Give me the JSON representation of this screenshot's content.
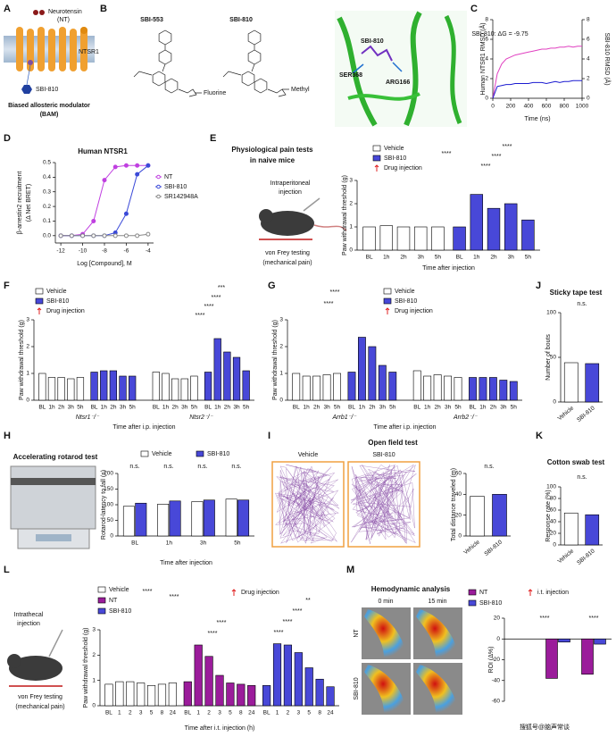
{
  "figure": {
    "panels": [
      "A",
      "B",
      "C",
      "D",
      "E",
      "F",
      "G",
      "J",
      "H",
      "I",
      "K",
      "L",
      "M"
    ],
    "a": {
      "ligand": "Neurotensin",
      "ligand_abbr": "(NT)",
      "receptor": "NTSR1",
      "modulator": "SBI-810",
      "caption": "Biased allosteric modulator",
      "caption_abbr": "(BAM)"
    },
    "b": {
      "compound_1": "SBI-553",
      "compound_2": "SBI-810",
      "group_1": "Fluorine",
      "group_2": "Methyl",
      "ligand": "SBI-810",
      "residue_1": "SER368",
      "residue_2": "ARG166"
    },
    "e": {
      "title": "Physiological pain tests",
      "title_2": "in naive mice",
      "route": "Intraperitoneal",
      "route_2": "injection",
      "test": "von Frey testing",
      "test_2": "(mechanical pain)"
    },
    "i": {
      "group_1": "Vehicle",
      "group_2": "SBI-810"
    },
    "l": {
      "route": "Intrathecal",
      "route_2": "injection",
      "test": "von Frey testing",
      "test_2": "(mechanical pain)"
    },
    "m": {
      "title": "Hemodynamic analysis",
      "time_1": "0 min",
      "time_2": "15 min",
      "row_1": "NT",
      "row_2": "SBI-810"
    },
    "watermark": "搜狐号@脑声常谈"
  },
  "chart_data": [
    {
      "type": "line",
      "x": [
        0,
        50,
        100,
        150,
        200,
        250,
        300,
        350,
        400,
        450,
        500,
        550,
        600,
        650,
        700,
        750,
        800,
        850,
        900,
        950,
        1000
      ],
      "xlim": [
        0,
        1000
      ],
      "xticks": [
        0,
        200,
        400,
        600,
        800,
        1000
      ],
      "ylim": [
        0,
        8
      ],
      "yticks": [
        0,
        2,
        4,
        6,
        8
      ],
      "y2lim": [
        0,
        8
      ],
      "y2ticks": [
        0,
        2,
        4,
        6,
        8
      ],
      "ylabel": "Human NTSR1 RMSD (Å)",
      "y2label": "SBI-810 RMSD (Å)",
      "xlabel": "Time (ns)",
      "annotations": [
        "SBI-810: ΔG = -9.75"
      ],
      "series": [
        {
          "color": "#e040c0",
          "values": [
            0,
            2.5,
            3.5,
            4,
            4.2,
            4.4,
            4.5,
            4.6,
            4.7,
            4.8,
            4.9,
            5,
            5,
            5.1,
            5.1,
            5.2,
            5.2,
            5.3,
            5.2,
            5.3,
            5.3
          ]
        },
        {
          "color": "#1a1ad0",
          "axis": "y2",
          "values": [
            0,
            1.2,
            1.3,
            1.4,
            1.4,
            1.5,
            1.5,
            1.5,
            1.5,
            1.6,
            1.6,
            1.6,
            1.5,
            1.6,
            1.7,
            1.6,
            1.7,
            1.7,
            1.8,
            1.8,
            1.8
          ]
        }
      ]
    },
    {
      "type": "line",
      "title": "Human NTSR1",
      "markers": true,
      "x": [
        -12,
        -11,
        -10,
        -9,
        -8,
        -7,
        -6,
        -5,
        -4
      ],
      "xlim": [
        -12.5,
        -3.5
      ],
      "xticks": [
        -12,
        -10,
        -8,
        -6,
        -4
      ],
      "ylim": [
        -0.05,
        0.5
      ],
      "yticks": [
        {
          "value": 0,
          "label": "0.0"
        },
        0.1,
        0.2,
        0.3,
        0.4,
        0.5
      ],
      "ylabel": [
        "β-arrestin2 recruitment",
        "(Δ Net BRET)"
      ],
      "xlabel": "Log [Compound], M",
      "series": [
        {
          "name": "NT",
          "color": "#c040e0",
          "values": [
            0,
            0,
            0.01,
            0.1,
            0.38,
            0.47,
            0.48,
            0.48,
            0.48
          ]
        },
        {
          "name": "SBI-810",
          "color": "#3b4ad8",
          "values": [
            0,
            0,
            0,
            0,
            0,
            0.02,
            0.15,
            0.42,
            0.48
          ]
        },
        {
          "name": "SR142948A",
          "color": "#888888",
          "values": [
            0,
            0,
            0,
            0,
            0,
            0,
            0,
            0,
            0.01
          ]
        }
      ]
    },
    {
      "type": "bar",
      "categories": [
        "BL",
        "1h",
        "2h",
        "3h",
        "5h"
      ],
      "series": [
        {
          "name": "Vehicle",
          "color": "#ffffff"
        },
        {
          "name": "SBI-810",
          "color": "#4848d8"
        }
      ],
      "groups": [
        {
          "values": [
            [
              1.0,
              1.05,
              1.0,
              1.0,
              1.0
            ],
            [
              1.0,
              2.4,
              1.8,
              2.0,
              1.3
            ]
          ]
        }
      ],
      "ylim": [
        0,
        3
      ],
      "yticks": [
        0,
        1,
        2,
        3
      ],
      "ylabel": "Paw withdrawal threshold (g)",
      "xlabel": "Time after injection",
      "injection_note": "Drug injection",
      "annotations": [
        "****",
        "****",
        "****",
        "****"
      ]
    },
    {
      "type": "bar",
      "categories": [
        "BL",
        "1h",
        "2h",
        "3h",
        "5h"
      ],
      "series": [
        {
          "name": "Vehicle",
          "color": "#ffffff"
        },
        {
          "name": "SBI-810",
          "color": "#4848d8"
        }
      ],
      "groups": [
        {
          "label": "Ntsr1⁻/⁻",
          "values": [
            [
              1.0,
              0.85,
              0.85,
              0.8,
              0.85
            ],
            [
              1.05,
              1.1,
              1.1,
              0.9,
              0.9
            ]
          ]
        },
        {
          "label": "Ntsr2⁻/⁻",
          "values": [
            [
              1.05,
              1.0,
              0.8,
              0.8,
              0.9
            ],
            [
              1.05,
              2.3,
              1.8,
              1.6,
              1.1
            ]
          ]
        }
      ],
      "ylim": [
        0,
        3
      ],
      "yticks": [
        0,
        1,
        2,
        3
      ],
      "ylabel": "Paw withdrawal threshold (g)",
      "xlabel": "Time after i.p. injection",
      "injection_note": "Drug injection",
      "annotations": [
        "***",
        "****",
        "****",
        "****"
      ]
    },
    {
      "type": "bar",
      "categories": [
        "BL",
        "1h",
        "2h",
        "3h",
        "5h"
      ],
      "series": [
        {
          "name": "Vehicle",
          "color": "#ffffff"
        },
        {
          "name": "SBI-810",
          "color": "#4848d8"
        }
      ],
      "groups": [
        {
          "label": "Arrb1⁻/⁻",
          "values": [
            [
              1.0,
              0.9,
              0.9,
              0.95,
              1.0
            ],
            [
              1.05,
              2.35,
              2.0,
              1.3,
              1.05
            ]
          ]
        },
        {
          "label": "Arrb2⁻/⁻",
          "values": [
            [
              1.1,
              0.9,
              0.95,
              0.9,
              0.85
            ],
            [
              0.85,
              0.85,
              0.85,
              0.75,
              0.7
            ]
          ]
        }
      ],
      "ylim": [
        0,
        3
      ],
      "yticks": [
        0,
        1,
        2,
        3
      ],
      "ylabel": "Paw withdrawal threshold (g)",
      "xlabel": "Time after i.p. injection",
      "injection_note": "Drug injection",
      "annotations": [
        "****",
        "****"
      ]
    },
    {
      "type": "bar",
      "title": "Sticky tape test",
      "categories": [
        "Vehicle",
        "SBI-810"
      ],
      "values": [
        44,
        43
      ],
      "colors": [
        "#ffffff",
        "#4848d8"
      ],
      "ylim": [
        0,
        100
      ],
      "yticks": [
        0,
        50,
        100
      ],
      "ylabel": "Number of bouts",
      "annotations": [
        "n.s."
      ]
    },
    {
      "type": "grouped_bar",
      "title": "Accelerating rotarod test",
      "categories": [
        "BL",
        "1h",
        "3h",
        "5h"
      ],
      "series": [
        {
          "name": "Vehicle",
          "color": "#ffffff",
          "values": [
            95,
            102,
            110,
            118
          ]
        },
        {
          "name": "SBI-810",
          "color": "#4848d8",
          "values": [
            105,
            112,
            115,
            115
          ]
        }
      ],
      "ylim": [
        0,
        200
      ],
      "yticks": [
        0,
        50,
        100,
        150,
        200
      ],
      "ylabel": "Rotarod-latency to fall (s)",
      "xlabel": "Time after injection",
      "annotations": [
        "n.s.",
        "n.s.",
        "n.s.",
        "n.s."
      ]
    },
    {
      "type": "bar",
      "title": "Open field test",
      "categories": [
        "Vehicle",
        "SBI-810"
      ],
      "values": [
        38,
        40
      ],
      "colors": [
        "#ffffff",
        "#4848d8"
      ],
      "ylim": [
        0,
        60
      ],
      "yticks": [
        0,
        20,
        40,
        60
      ],
      "ylabel": "Total distance traveled (m)",
      "annotations": [
        "n.s."
      ]
    },
    {
      "type": "bar",
      "title": "Cotton swab test",
      "categories": [
        "Vehicle",
        "SBI-810"
      ],
      "values": [
        55,
        52
      ],
      "colors": [
        "#ffffff",
        "#4848d8"
      ],
      "ylim": [
        0,
        100
      ],
      "yticks": [
        0,
        20,
        40,
        60,
        80,
        100
      ],
      "ylabel": "Response rate (%)",
      "annotations": [
        "n.s."
      ]
    },
    {
      "type": "bar",
      "categories": [
        "BL",
        "1",
        "2",
        "3",
        "5",
        "8",
        "24"
      ],
      "series": [
        {
          "name": "Vehicle",
          "color": "#ffffff"
        },
        {
          "name": "NT",
          "color": "#9b1c9b"
        },
        {
          "name": "SBI-810",
          "color": "#4848d8"
        }
      ],
      "groups": [
        {
          "values": [
            [
              0.85,
              0.95,
              0.95,
              0.9,
              0.8,
              0.85,
              0.9
            ],
            [
              0.95,
              2.4,
              1.95,
              1.2,
              0.9,
              0.85,
              0.8
            ],
            [
              0.8,
              2.45,
              2.4,
              2.1,
              1.5,
              1.05,
              0.75
            ]
          ]
        }
      ],
      "ylim": [
        0,
        3
      ],
      "yticks": [
        0,
        1,
        2,
        3
      ],
      "ylabel": "Paw withdrawal threshold (g)",
      "xlabel": "Time after i.t. injection (h)",
      "injection_note": "Drug injection",
      "annotations": [
        "****",
        "****",
        "****",
        "****",
        "**",
        "****",
        "****",
        "****"
      ]
    },
    {
      "type": "grouped_bar",
      "categories": [
        null,
        null,
        null
      ],
      "series": [
        {
          "name": "NT",
          "color": "#9b1c9b",
          "values": [
            0,
            -38,
            -34
          ]
        },
        {
          "name": "SBI-810",
          "color": "#4848d8",
          "values": [
            0,
            -3,
            -5
          ]
        }
      ],
      "ylim": [
        -60,
        20
      ],
      "yticks": [
        -60,
        -40,
        -20,
        0,
        20
      ],
      "ylabel": "ROI (Δ%)",
      "injection_note": "i.t. injection",
      "annotations": [
        "****",
        "****"
      ]
    }
  ]
}
